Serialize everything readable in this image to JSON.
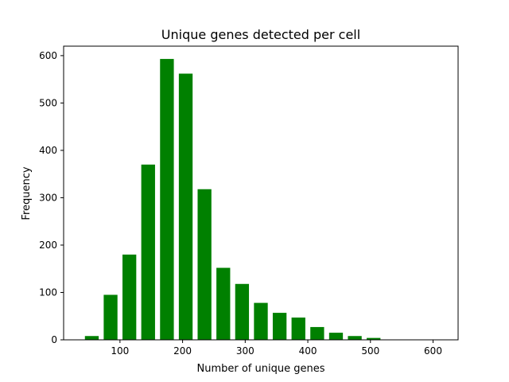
{
  "chart_data": {
    "type": "bar",
    "title": "Unique genes detected per cell",
    "xlabel": "Number of unique genes",
    "ylabel": "Frequency",
    "bar_color": "#008000",
    "xlim": [
      10,
      640
    ],
    "ylim": [
      0,
      620
    ],
    "grid": false,
    "x": [
      55,
      85,
      115,
      145,
      175,
      205,
      235,
      265,
      295,
      325,
      355,
      385,
      415,
      445,
      475,
      505,
      535,
      565,
      595
    ],
    "values": [
      8,
      95,
      180,
      370,
      593,
      562,
      318,
      152,
      118,
      78,
      57,
      47,
      27,
      15,
      8,
      4,
      0,
      0,
      0
    ],
    "bar_width": 22,
    "xticks": [
      100,
      200,
      300,
      400,
      500,
      600
    ],
    "xtick_labels": [
      "100",
      "200",
      "300",
      "400",
      "500",
      "600"
    ],
    "yticks": [
      0,
      100,
      200,
      300,
      400,
      500,
      600
    ],
    "ytick_labels": [
      "0",
      "100",
      "200",
      "300",
      "400",
      "500",
      "600"
    ]
  }
}
